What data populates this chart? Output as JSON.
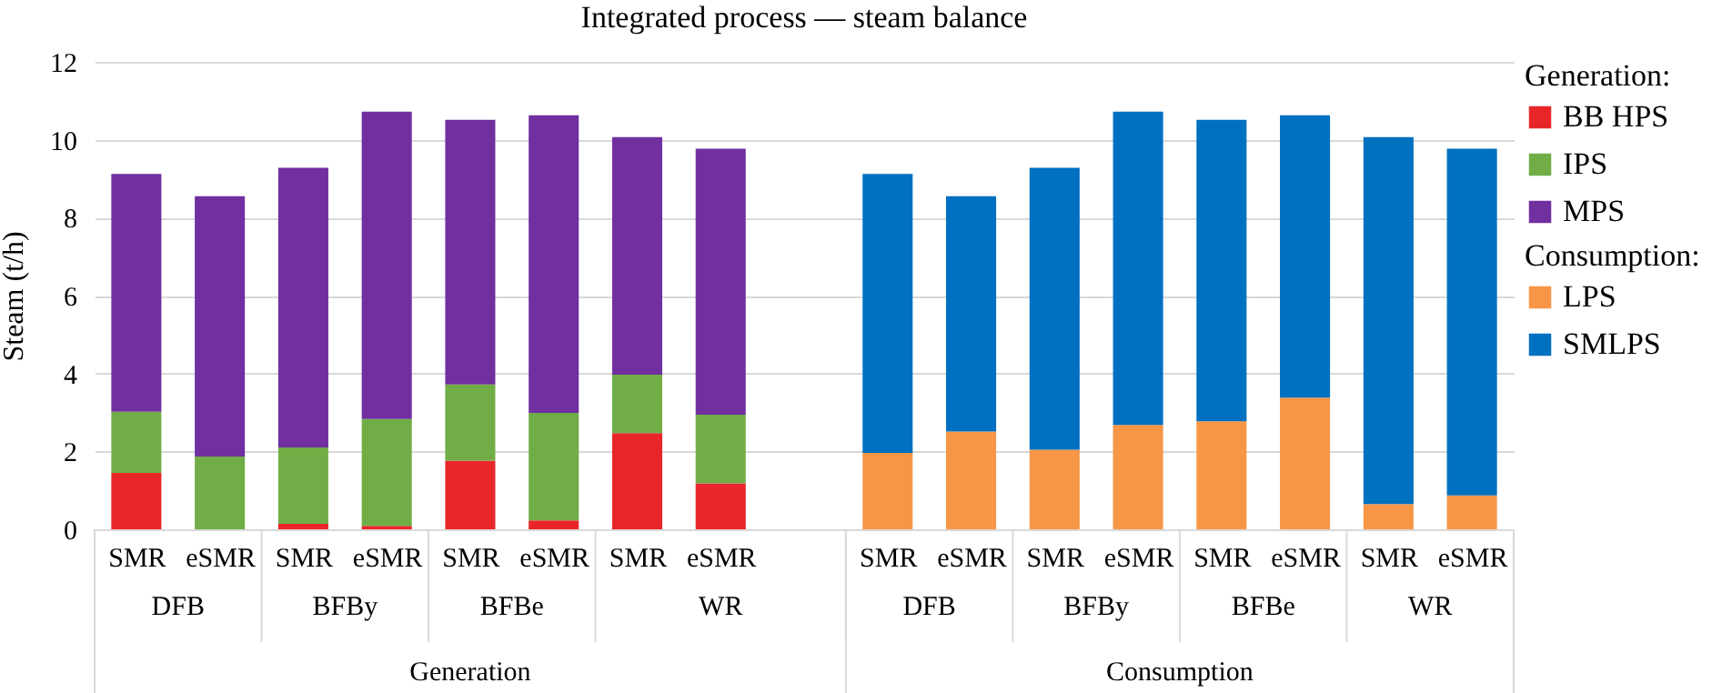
{
  "chart_data": {
    "type": "bar",
    "title": "Integrated process — steam balance",
    "ylabel": "Steam (t/h)",
    "categories": [
      "SMR",
      "eSMR",
      "SMR",
      "eSMR",
      "SMR",
      "eSMR",
      "SMR",
      "eSMR",
      null,
      "SMR",
      "eSMR",
      "SMR",
      "eSMR",
      "SMR",
      "eSMR",
      "SMR",
      "eSMR"
    ],
    "series": [
      {
        "name": "BB HPS",
        "color": "#e8262a",
        "values": [
          1.45,
          0,
          0.14,
          0.09,
          1.76,
          0.23,
          2.47,
          1.18,
          null,
          null,
          null,
          null,
          null,
          null,
          null,
          null,
          null
        ]
      },
      {
        "name": "IPS",
        "color": "#70ad47",
        "values": [
          1.57,
          1.87,
          1.96,
          2.74,
          1.96,
          2.76,
          1.5,
          1.76,
          null,
          null,
          null,
          null,
          null,
          null,
          null,
          null,
          null
        ]
      },
      {
        "name": "MPS",
        "color": "#7030a0",
        "values": [
          6.1,
          6.68,
          7.18,
          7.89,
          6.79,
          7.64,
          6.1,
          6.83,
          null,
          null,
          null,
          null,
          null,
          null,
          null,
          null,
          null
        ]
      },
      {
        "name": "LPS",
        "color": "#f79646",
        "values": [
          null,
          null,
          null,
          null,
          null,
          null,
          null,
          null,
          null,
          1.96,
          2.51,
          2.04,
          2.68,
          2.77,
          3.38,
          0.65,
          0.87
        ]
      },
      {
        "name": "SMLPS",
        "color": "#0070c0",
        "values": [
          null,
          null,
          null,
          null,
          null,
          null,
          null,
          null,
          null,
          7.16,
          6.04,
          7.24,
          8.04,
          7.74,
          7.25,
          9.42,
          8.9
        ]
      }
    ],
    "stacked": true,
    "ylim": [
      0,
      12
    ],
    "yticks": [
      0,
      2,
      4,
      6,
      8,
      10,
      12
    ],
    "grid": "y",
    "legend": "right",
    "annotations": [
      "DFB",
      "BFBy",
      "BFBe",
      "WR",
      "DFB",
      "BFBy",
      "BFBe",
      "WR",
      "Generation",
      "Consumption",
      "Generation:",
      "Consumption:"
    ]
  }
}
